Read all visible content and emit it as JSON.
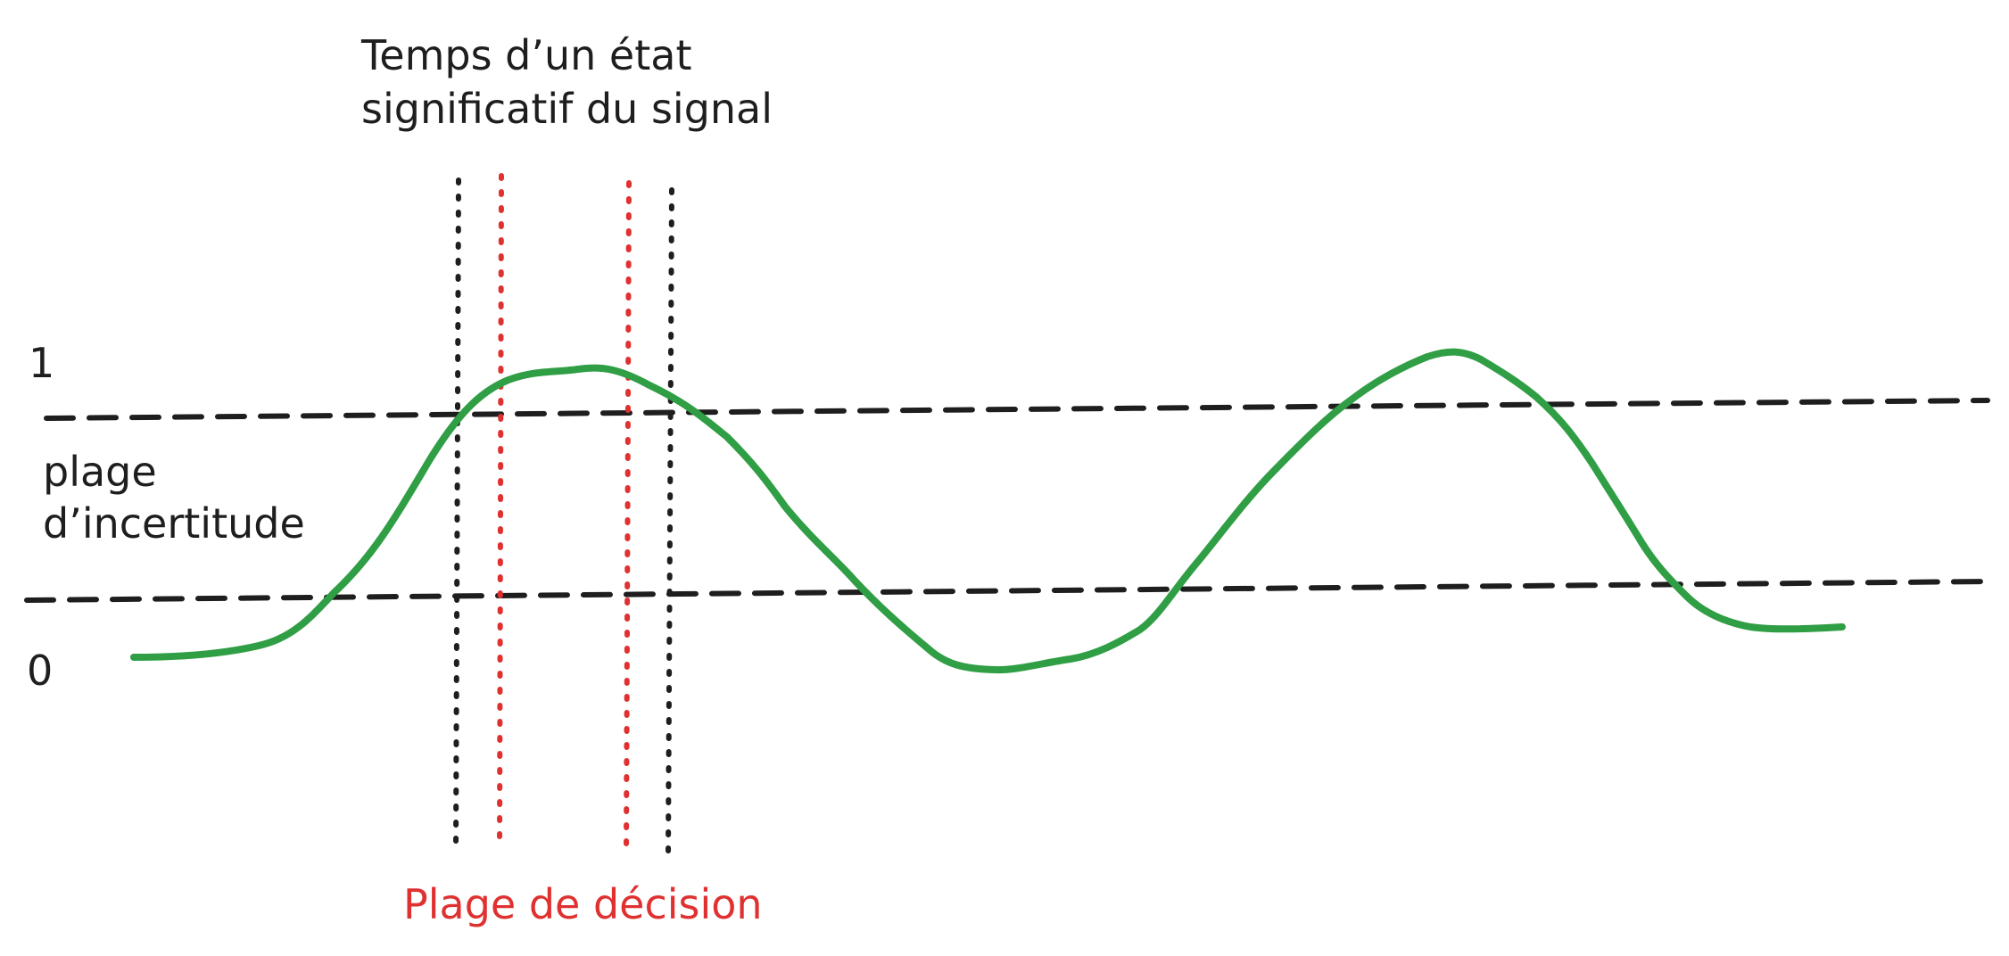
{
  "title_line1": "Temps d’un état",
  "title_line2": "significatif du signal",
  "level_high_label": "1",
  "level_low_label": "0",
  "uncertainty_line1": "plage",
  "uncertainty_line2": "d’incertitude",
  "decision_label": "Plage de décision",
  "colors": {
    "signal": "#2f9e44",
    "threshold": "#1e1e1e",
    "state_time_bounds": "#1e1e1e",
    "decision_bounds": "#e03131",
    "text": "#1e1e1e",
    "decision_text": "#e03131"
  }
}
